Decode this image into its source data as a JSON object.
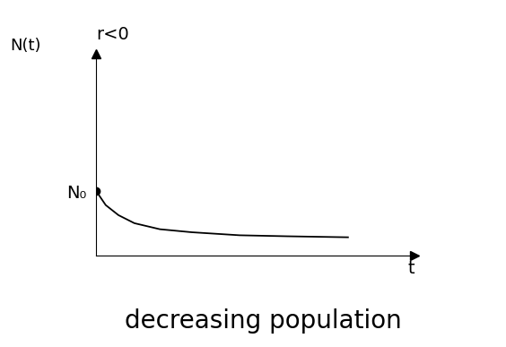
{
  "chart_data": {
    "type": "line",
    "title": "r<0",
    "x_label": "t",
    "y_label": "N(t)",
    "caption": "decreasing population",
    "x": [
      0,
      0.3,
      0.7,
      1.2,
      2,
      3,
      4.5,
      6,
      7.9
    ],
    "values": [
      3.2,
      2.5,
      2.0,
      1.6,
      1.3,
      1.15,
      1.0,
      0.95,
      0.9
    ],
    "color": "#000000",
    "marker": "o",
    "xlim": [
      0,
      10
    ],
    "ylim": [
      0,
      10
    ],
    "xticks": [],
    "yticks": [
      {
        "value": 3.2,
        "label": "N₀"
      }
    ],
    "tick_labels": "y",
    "grid": false
  }
}
